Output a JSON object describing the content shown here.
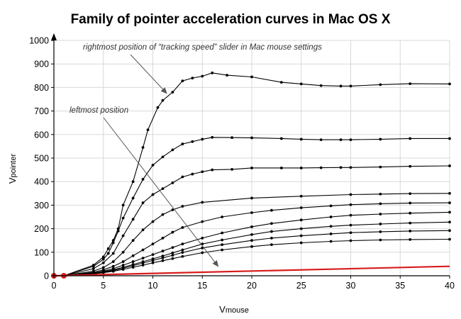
{
  "chart_data": {
    "type": "line",
    "title": "Family of pointer acceleration curves in Mac OS X",
    "xlabel": {
      "main": "V",
      "sub": "mouse"
    },
    "ylabel": {
      "main": "V",
      "sub": "pointer"
    },
    "xlim": [
      0,
      40
    ],
    "ylim": [
      0,
      1000
    ],
    "xticks": [
      0,
      5,
      10,
      15,
      20,
      25,
      30,
      35,
      40
    ],
    "yticks": [
      0,
      100,
      200,
      300,
      400,
      500,
      600,
      700,
      800,
      900,
      1000
    ],
    "grid": true,
    "colors": {
      "curve": "#000000",
      "linear": "#d81c1c",
      "grid": "#d8d8d8",
      "arrow": "#555555"
    },
    "series": [
      {
        "color": "#000000",
        "points": [
          [
            0,
            0
          ],
          [
            1,
            0
          ],
          [
            4,
            45
          ],
          [
            5,
            80
          ],
          [
            5.5,
            115
          ],
          [
            6,
            150
          ],
          [
            6.5,
            200
          ],
          [
            7,
            300
          ],
          [
            8,
            400
          ],
          [
            9,
            545
          ],
          [
            9.5,
            620
          ],
          [
            10.5,
            715
          ],
          [
            11,
            745
          ],
          [
            12,
            780
          ],
          [
            13,
            828
          ],
          [
            14,
            840
          ],
          [
            15,
            848
          ],
          [
            16,
            862
          ],
          [
            17.5,
            852
          ],
          [
            20,
            845
          ],
          [
            23,
            822
          ],
          [
            25,
            815
          ],
          [
            27,
            808
          ],
          [
            29,
            806
          ],
          [
            30,
            806
          ],
          [
            33,
            812
          ],
          [
            36,
            816
          ],
          [
            40,
            815
          ]
        ]
      },
      {
        "color": "#000000",
        "points": [
          [
            0,
            0
          ],
          [
            1,
            0
          ],
          [
            4,
            40
          ],
          [
            5,
            70
          ],
          [
            5.5,
            95
          ],
          [
            6,
            140
          ],
          [
            6.5,
            190
          ],
          [
            7,
            245
          ],
          [
            8,
            330
          ],
          [
            9,
            410
          ],
          [
            10,
            470
          ],
          [
            11,
            505
          ],
          [
            12,
            535
          ],
          [
            13,
            560
          ],
          [
            14,
            570
          ],
          [
            15,
            580
          ],
          [
            16,
            588
          ],
          [
            18,
            587
          ],
          [
            20,
            586
          ],
          [
            23,
            583
          ],
          [
            25,
            580
          ],
          [
            27,
            578
          ],
          [
            29,
            578
          ],
          [
            30,
            578
          ],
          [
            33,
            580
          ],
          [
            36,
            583
          ],
          [
            40,
            583
          ]
        ]
      },
      {
        "color": "#000000",
        "points": [
          [
            0,
            0
          ],
          [
            1,
            0
          ],
          [
            4,
            30
          ],
          [
            5,
            55
          ],
          [
            6,
            95
          ],
          [
            7,
            170
          ],
          [
            8,
            240
          ],
          [
            9,
            310
          ],
          [
            10,
            345
          ],
          [
            11,
            370
          ],
          [
            12,
            395
          ],
          [
            13,
            420
          ],
          [
            14,
            432
          ],
          [
            15,
            442
          ],
          [
            16,
            450
          ],
          [
            18,
            452
          ],
          [
            20,
            458
          ],
          [
            23,
            458
          ],
          [
            25,
            458
          ],
          [
            27,
            459
          ],
          [
            29,
            460
          ],
          [
            30,
            460
          ],
          [
            33,
            462
          ],
          [
            36,
            465
          ],
          [
            40,
            467
          ]
        ]
      },
      {
        "color": "#000000",
        "points": [
          [
            0,
            0
          ],
          [
            1,
            0
          ],
          [
            4,
            20
          ],
          [
            5,
            35
          ],
          [
            6,
            60
          ],
          [
            7,
            100
          ],
          [
            8,
            150
          ],
          [
            9,
            195
          ],
          [
            10,
            230
          ],
          [
            11,
            260
          ],
          [
            12,
            280
          ],
          [
            13,
            295
          ],
          [
            15,
            312
          ],
          [
            20,
            330
          ],
          [
            25,
            338
          ],
          [
            30,
            345
          ],
          [
            33,
            347
          ],
          [
            36,
            349
          ],
          [
            40,
            350
          ]
        ]
      },
      {
        "color": "#000000",
        "points": [
          [
            0,
            0
          ],
          [
            1,
            0
          ],
          [
            4,
            15
          ],
          [
            5,
            25
          ],
          [
            6,
            40
          ],
          [
            7,
            60
          ],
          [
            8,
            85
          ],
          [
            9,
            110
          ],
          [
            10,
            135
          ],
          [
            11,
            160
          ],
          [
            12,
            185
          ],
          [
            13,
            205
          ],
          [
            15,
            230
          ],
          [
            17,
            250
          ],
          [
            20,
            268
          ],
          [
            22,
            278
          ],
          [
            25,
            289
          ],
          [
            28,
            297
          ],
          [
            30,
            302
          ],
          [
            33,
            306
          ],
          [
            36,
            309
          ],
          [
            40,
            310
          ]
        ]
      },
      {
        "color": "#000000",
        "points": [
          [
            0,
            0
          ],
          [
            1,
            0
          ],
          [
            4,
            12
          ],
          [
            5,
            20
          ],
          [
            6,
            30
          ],
          [
            7,
            45
          ],
          [
            8,
            60
          ],
          [
            9,
            75
          ],
          [
            10,
            90
          ],
          [
            11,
            105
          ],
          [
            12,
            120
          ],
          [
            13,
            135
          ],
          [
            15,
            160
          ],
          [
            17,
            182
          ],
          [
            20,
            208
          ],
          [
            22,
            222
          ],
          [
            25,
            237
          ],
          [
            28,
            250
          ],
          [
            30,
            257
          ],
          [
            33,
            262
          ],
          [
            36,
            266
          ],
          [
            40,
            270
          ]
        ]
      },
      {
        "color": "#000000",
        "points": [
          [
            0,
            0
          ],
          [
            1,
            0
          ],
          [
            4,
            10
          ],
          [
            5,
            17
          ],
          [
            6,
            25
          ],
          [
            7,
            36
          ],
          [
            8,
            48
          ],
          [
            9,
            60
          ],
          [
            10,
            72
          ],
          [
            11,
            84
          ],
          [
            12,
            97
          ],
          [
            13,
            110
          ],
          [
            15,
            135
          ],
          [
            17,
            152
          ],
          [
            20,
            175
          ],
          [
            22,
            188
          ],
          [
            25,
            200
          ],
          [
            28,
            210
          ],
          [
            30,
            215
          ],
          [
            33,
            220
          ],
          [
            36,
            224
          ],
          [
            40,
            228
          ]
        ]
      },
      {
        "color": "#000000",
        "points": [
          [
            0,
            0
          ],
          [
            1,
            0
          ],
          [
            4,
            9
          ],
          [
            5,
            15
          ],
          [
            6,
            22
          ],
          [
            7,
            32
          ],
          [
            8,
            43
          ],
          [
            9,
            54
          ],
          [
            10,
            65
          ],
          [
            11,
            76
          ],
          [
            12,
            87
          ],
          [
            13,
            99
          ],
          [
            15,
            118
          ],
          [
            17,
            132
          ],
          [
            20,
            150
          ],
          [
            22,
            160
          ],
          [
            25,
            170
          ],
          [
            28,
            178
          ],
          [
            30,
            183
          ],
          [
            33,
            187
          ],
          [
            36,
            190
          ],
          [
            40,
            192
          ]
        ]
      },
      {
        "color": "#000000",
        "points": [
          [
            0,
            0
          ],
          [
            1,
            0
          ],
          [
            4,
            8
          ],
          [
            5,
            13
          ],
          [
            6,
            19
          ],
          [
            7,
            27
          ],
          [
            8,
            36
          ],
          [
            9,
            45
          ],
          [
            10,
            55
          ],
          [
            11,
            64
          ],
          [
            12,
            73
          ],
          [
            13,
            82
          ],
          [
            15,
            98
          ],
          [
            17,
            110
          ],
          [
            20,
            124
          ],
          [
            22,
            132
          ],
          [
            25,
            140
          ],
          [
            28,
            146
          ],
          [
            30,
            149
          ],
          [
            33,
            152
          ],
          [
            36,
            154
          ],
          [
            40,
            155
          ]
        ]
      },
      {
        "color": "#d81c1c",
        "linear": true,
        "points": [
          [
            0,
            0
          ],
          [
            40,
            40
          ]
        ]
      }
    ],
    "annotations": [
      {
        "text": "rightmost position of “tracking speed” slider in Mac mouse settings",
        "arrow_to": [
          11.4,
          775
        ]
      },
      {
        "text": "leftmost position",
        "arrow_to": [
          16.6,
          40
        ]
      }
    ]
  }
}
